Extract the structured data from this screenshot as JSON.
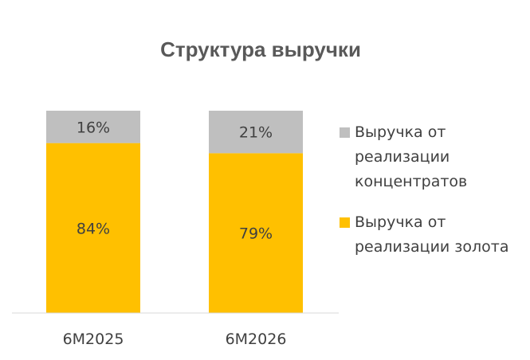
{
  "chart_data": {
    "type": "bar",
    "stacked": true,
    "title": "Структура выручки",
    "xlabel": "",
    "ylabel": "",
    "ylim": [
      0,
      100
    ],
    "grid": false,
    "legend_position": "right",
    "value_format": "percent",
    "categories": [
      "6M2025",
      "6M2026"
    ],
    "series": [
      {
        "name": "Выручка от реализации золота",
        "legend_lines": [
          "Выручка от",
          "реализации золота"
        ],
        "color": "#FFC000",
        "values": [
          84,
          79
        ]
      },
      {
        "name": "Выручка от реализации концентратов",
        "legend_lines": [
          "Выручка от",
          "реализации",
          "концентратов"
        ],
        "color": "#BFBFBF",
        "values": [
          16,
          21
        ]
      }
    ]
  }
}
